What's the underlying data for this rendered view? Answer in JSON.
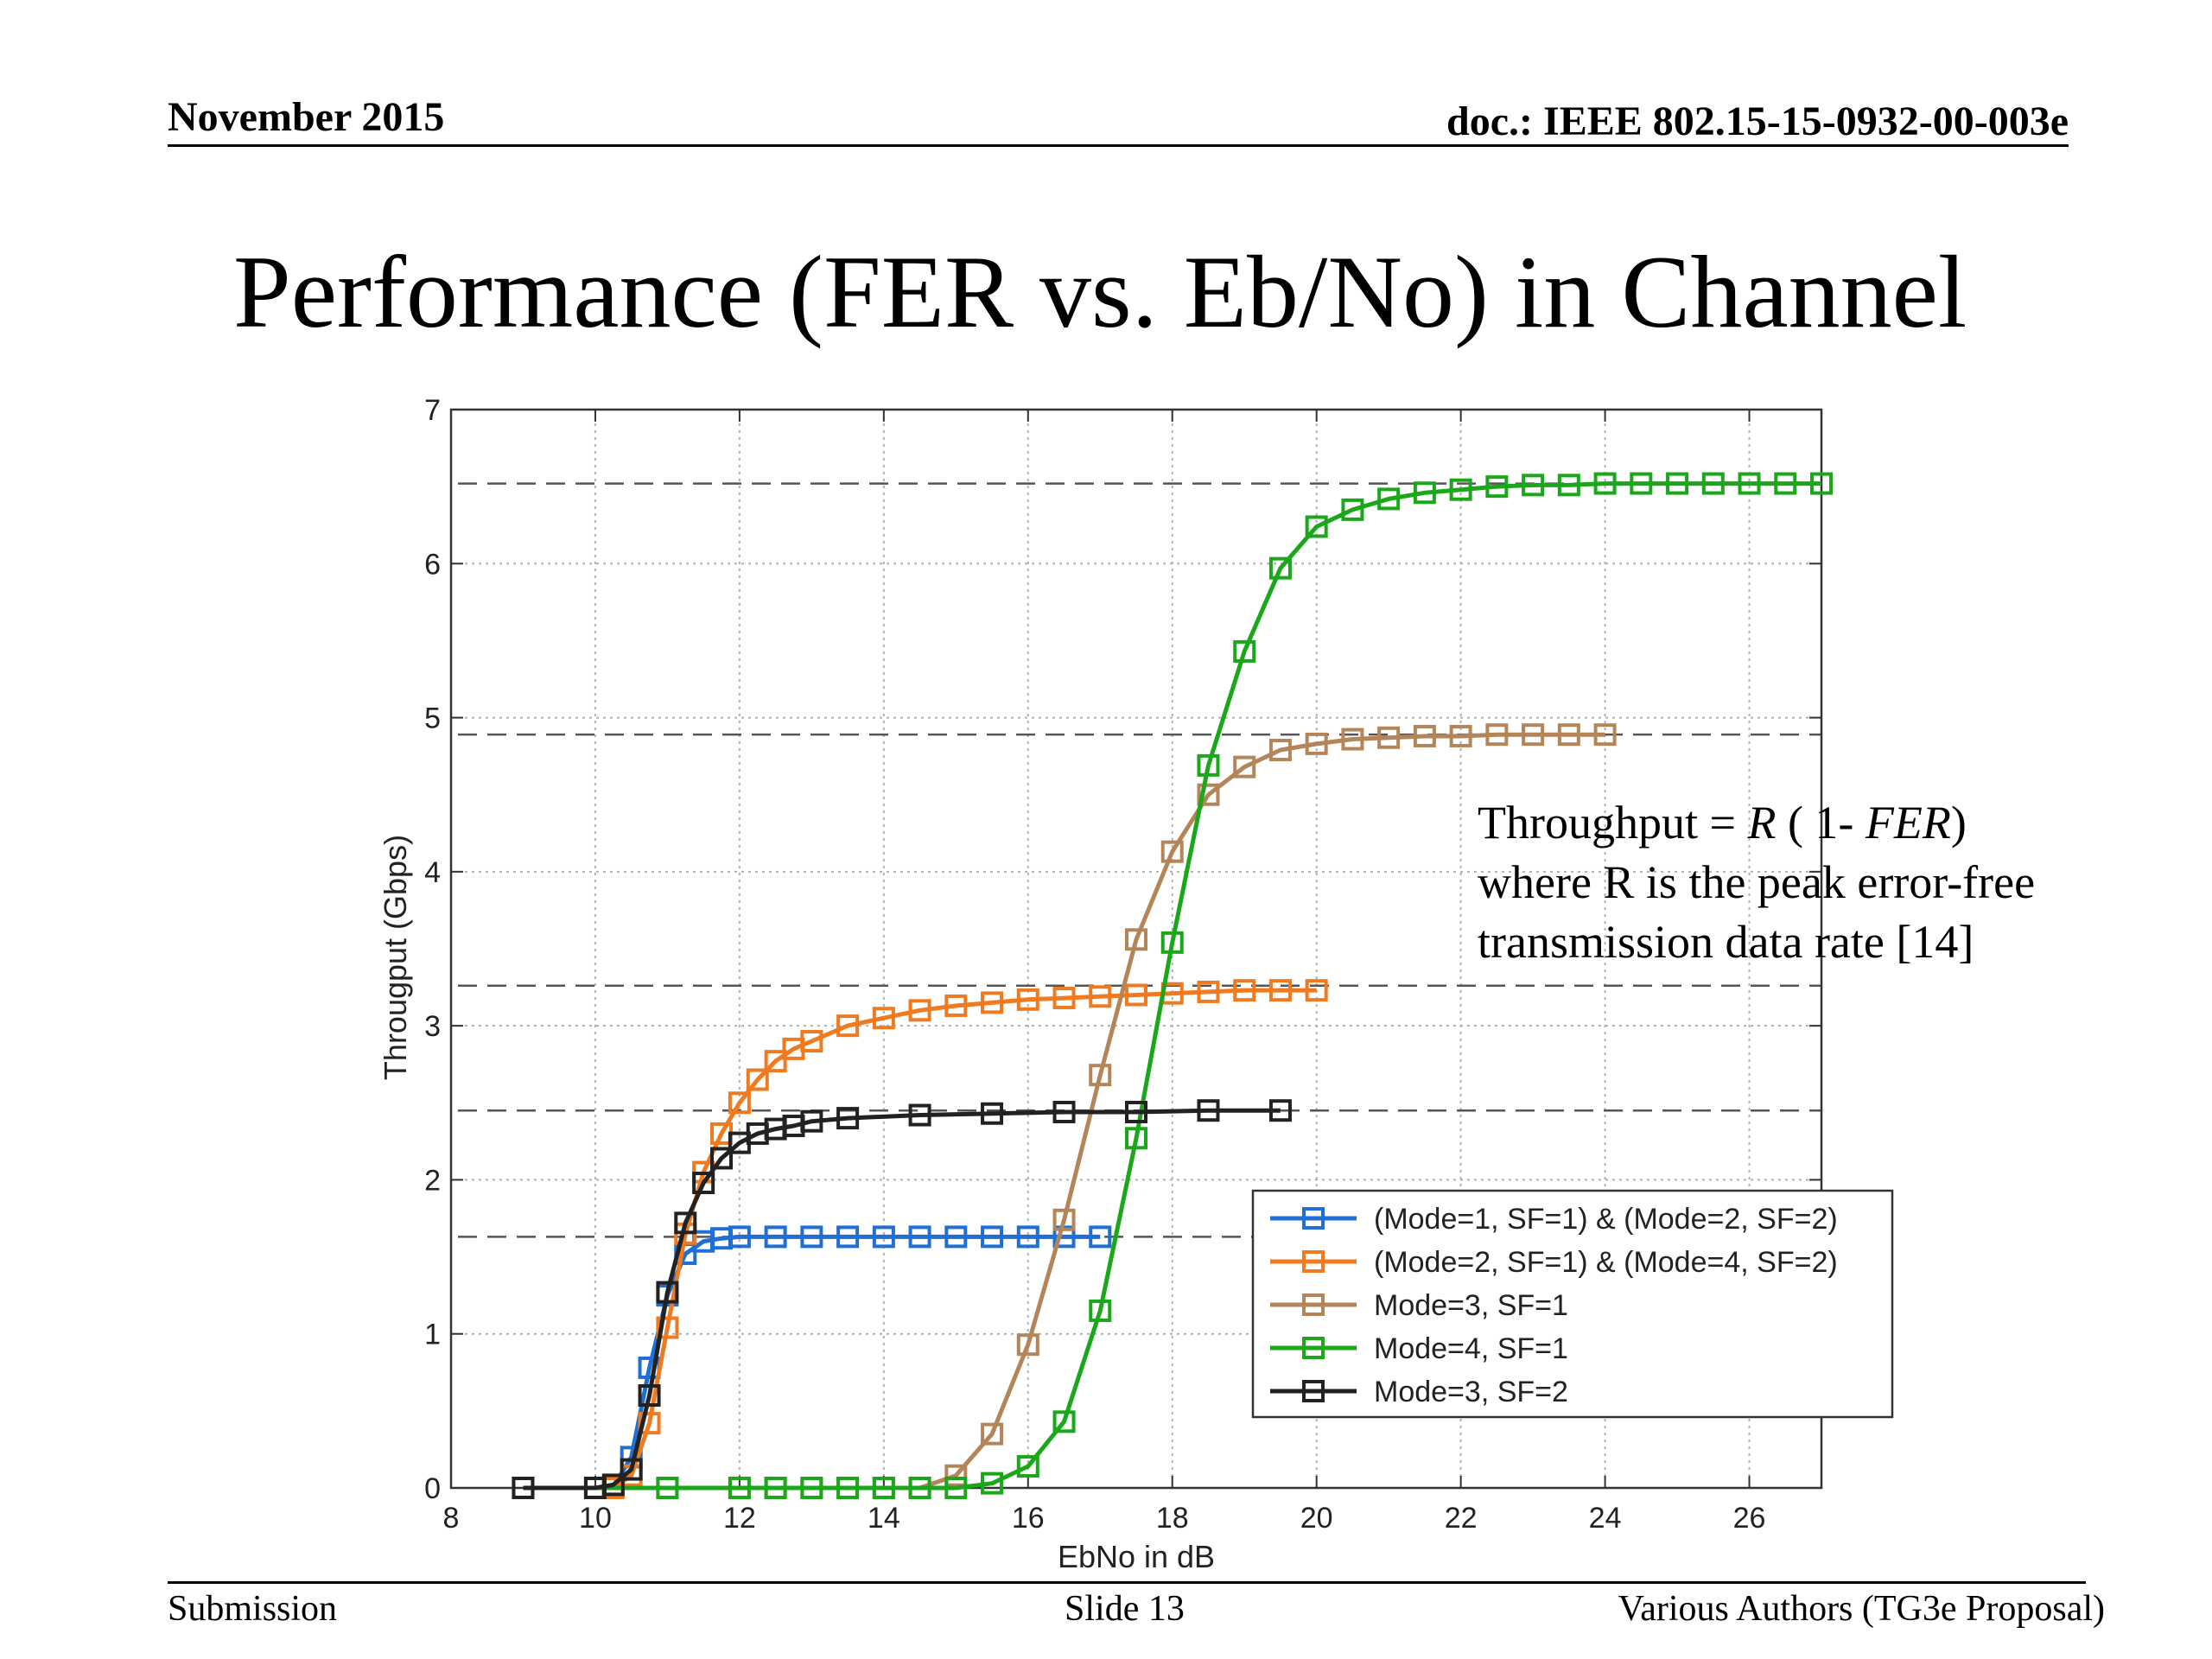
{
  "header": {
    "date": "November 2015",
    "doc_id": "doc.: IEEE 802.15-15-0932-00-003e"
  },
  "slide": {
    "title": "Performance (FER vs. Eb/No) in Channel"
  },
  "note": {
    "line1_prefix": "Throughput = ",
    "line1_R": "R",
    "line1_mid": " ( 1- ",
    "line1_FER": "FER",
    "line1_suffix": ")",
    "line2": "where R is the peak error-free",
    "line3": "transmission data rate [14]"
  },
  "footer": {
    "left": "Submission",
    "center": "Slide 13",
    "right": "Various Authors (TG3e Proposal)"
  },
  "chart_data": {
    "type": "line",
    "title": "",
    "xlabel": "EbNo in dB",
    "ylabel": "Througput (Gbps)",
    "xlim": [
      8,
      27
    ],
    "ylim": [
      0,
      7
    ],
    "xticks": [
      8,
      10,
      12,
      14,
      16,
      18,
      20,
      22,
      24,
      26
    ],
    "yticks": [
      0,
      1,
      2,
      3,
      4,
      5,
      6,
      7
    ],
    "grid": true,
    "legend_position": "lower-right",
    "reference_lines_y": [
      6.52,
      4.89,
      3.26,
      2.45,
      1.63
    ],
    "series": [
      {
        "name": "(Mode=1, SF=1) & (Mode=2, SF=2)",
        "color": "#1f6fd6",
        "x": [
          9,
          10,
          10.25,
          10.5,
          10.75,
          11,
          11.25,
          11.5,
          11.75,
          12,
          12.5,
          13,
          13.5,
          14,
          14.5,
          15,
          15.5,
          16,
          16.5,
          17
        ],
        "y": [
          0,
          0,
          0.01,
          0.2,
          0.78,
          1.25,
          1.52,
          1.6,
          1.62,
          1.63,
          1.63,
          1.63,
          1.63,
          1.63,
          1.63,
          1.63,
          1.63,
          1.63,
          1.63,
          1.63
        ]
      },
      {
        "name": "(Mode=2, SF=1) & (Mode=4, SF=2)",
        "color": "#f07a20",
        "x": [
          9,
          10,
          10.25,
          10.5,
          10.75,
          11,
          11.25,
          11.5,
          11.75,
          12,
          12.25,
          12.5,
          12.75,
          13,
          13.5,
          14,
          14.5,
          15,
          15.5,
          16,
          16.5,
          17,
          17.5,
          18,
          18.5,
          19,
          19.5,
          20
        ],
        "y": [
          0,
          0,
          0,
          0.08,
          0.42,
          1.04,
          1.65,
          2.05,
          2.3,
          2.5,
          2.65,
          2.77,
          2.85,
          2.9,
          3.0,
          3.05,
          3.1,
          3.13,
          3.15,
          3.17,
          3.18,
          3.19,
          3.2,
          3.21,
          3.22,
          3.23,
          3.23,
          3.23
        ]
      },
      {
        "name": "Mode=3, SF=1",
        "color": "#b5855a",
        "x": [
          9,
          10,
          11,
          12,
          12.5,
          13,
          13.5,
          14,
          14.5,
          15,
          15.5,
          16,
          16.5,
          17,
          17.5,
          18,
          18.5,
          19,
          19.5,
          20,
          20.5,
          21,
          21.5,
          22,
          22.5,
          23,
          23.5,
          24
        ],
        "y": [
          0,
          0,
          0,
          0,
          0,
          0,
          0,
          0,
          0,
          0.08,
          0.35,
          0.93,
          1.74,
          2.68,
          3.56,
          4.13,
          4.5,
          4.68,
          4.79,
          4.83,
          4.86,
          4.87,
          4.88,
          4.88,
          4.89,
          4.89,
          4.89,
          4.89
        ]
      },
      {
        "name": "Mode=4, SF=1",
        "color": "#1aa81a",
        "x": [
          9,
          10,
          11,
          12,
          12.5,
          13,
          13.5,
          14,
          14.5,
          15,
          15.5,
          16,
          16.5,
          17,
          17.5,
          18,
          18.5,
          19,
          19.5,
          20,
          20.5,
          21,
          21.5,
          22,
          22.5,
          23,
          23.5,
          24,
          24.5,
          25,
          25.5,
          26,
          26.5,
          27
        ],
        "y": [
          0,
          0,
          0,
          0,
          0,
          0,
          0,
          0,
          0,
          0,
          0.03,
          0.14,
          0.43,
          1.15,
          2.27,
          3.54,
          4.69,
          5.43,
          5.97,
          6.24,
          6.35,
          6.42,
          6.46,
          6.48,
          6.5,
          6.51,
          6.51,
          6.52,
          6.52,
          6.52,
          6.52,
          6.52,
          6.52,
          6.52
        ]
      },
      {
        "name": "Mode=3, SF=2",
        "color": "#222222",
        "x": [
          9,
          10,
          10.25,
          10.5,
          10.75,
          11,
          11.25,
          11.5,
          11.75,
          12,
          12.25,
          12.5,
          12.75,
          13,
          13.5,
          14.5,
          15.5,
          16.5,
          17.5,
          18.5,
          19.5
        ],
        "y": [
          0,
          0,
          0.02,
          0.12,
          0.6,
          1.27,
          1.72,
          1.98,
          2.14,
          2.24,
          2.3,
          2.33,
          2.35,
          2.38,
          2.4,
          2.42,
          2.43,
          2.44,
          2.44,
          2.45,
          2.45
        ]
      }
    ]
  }
}
